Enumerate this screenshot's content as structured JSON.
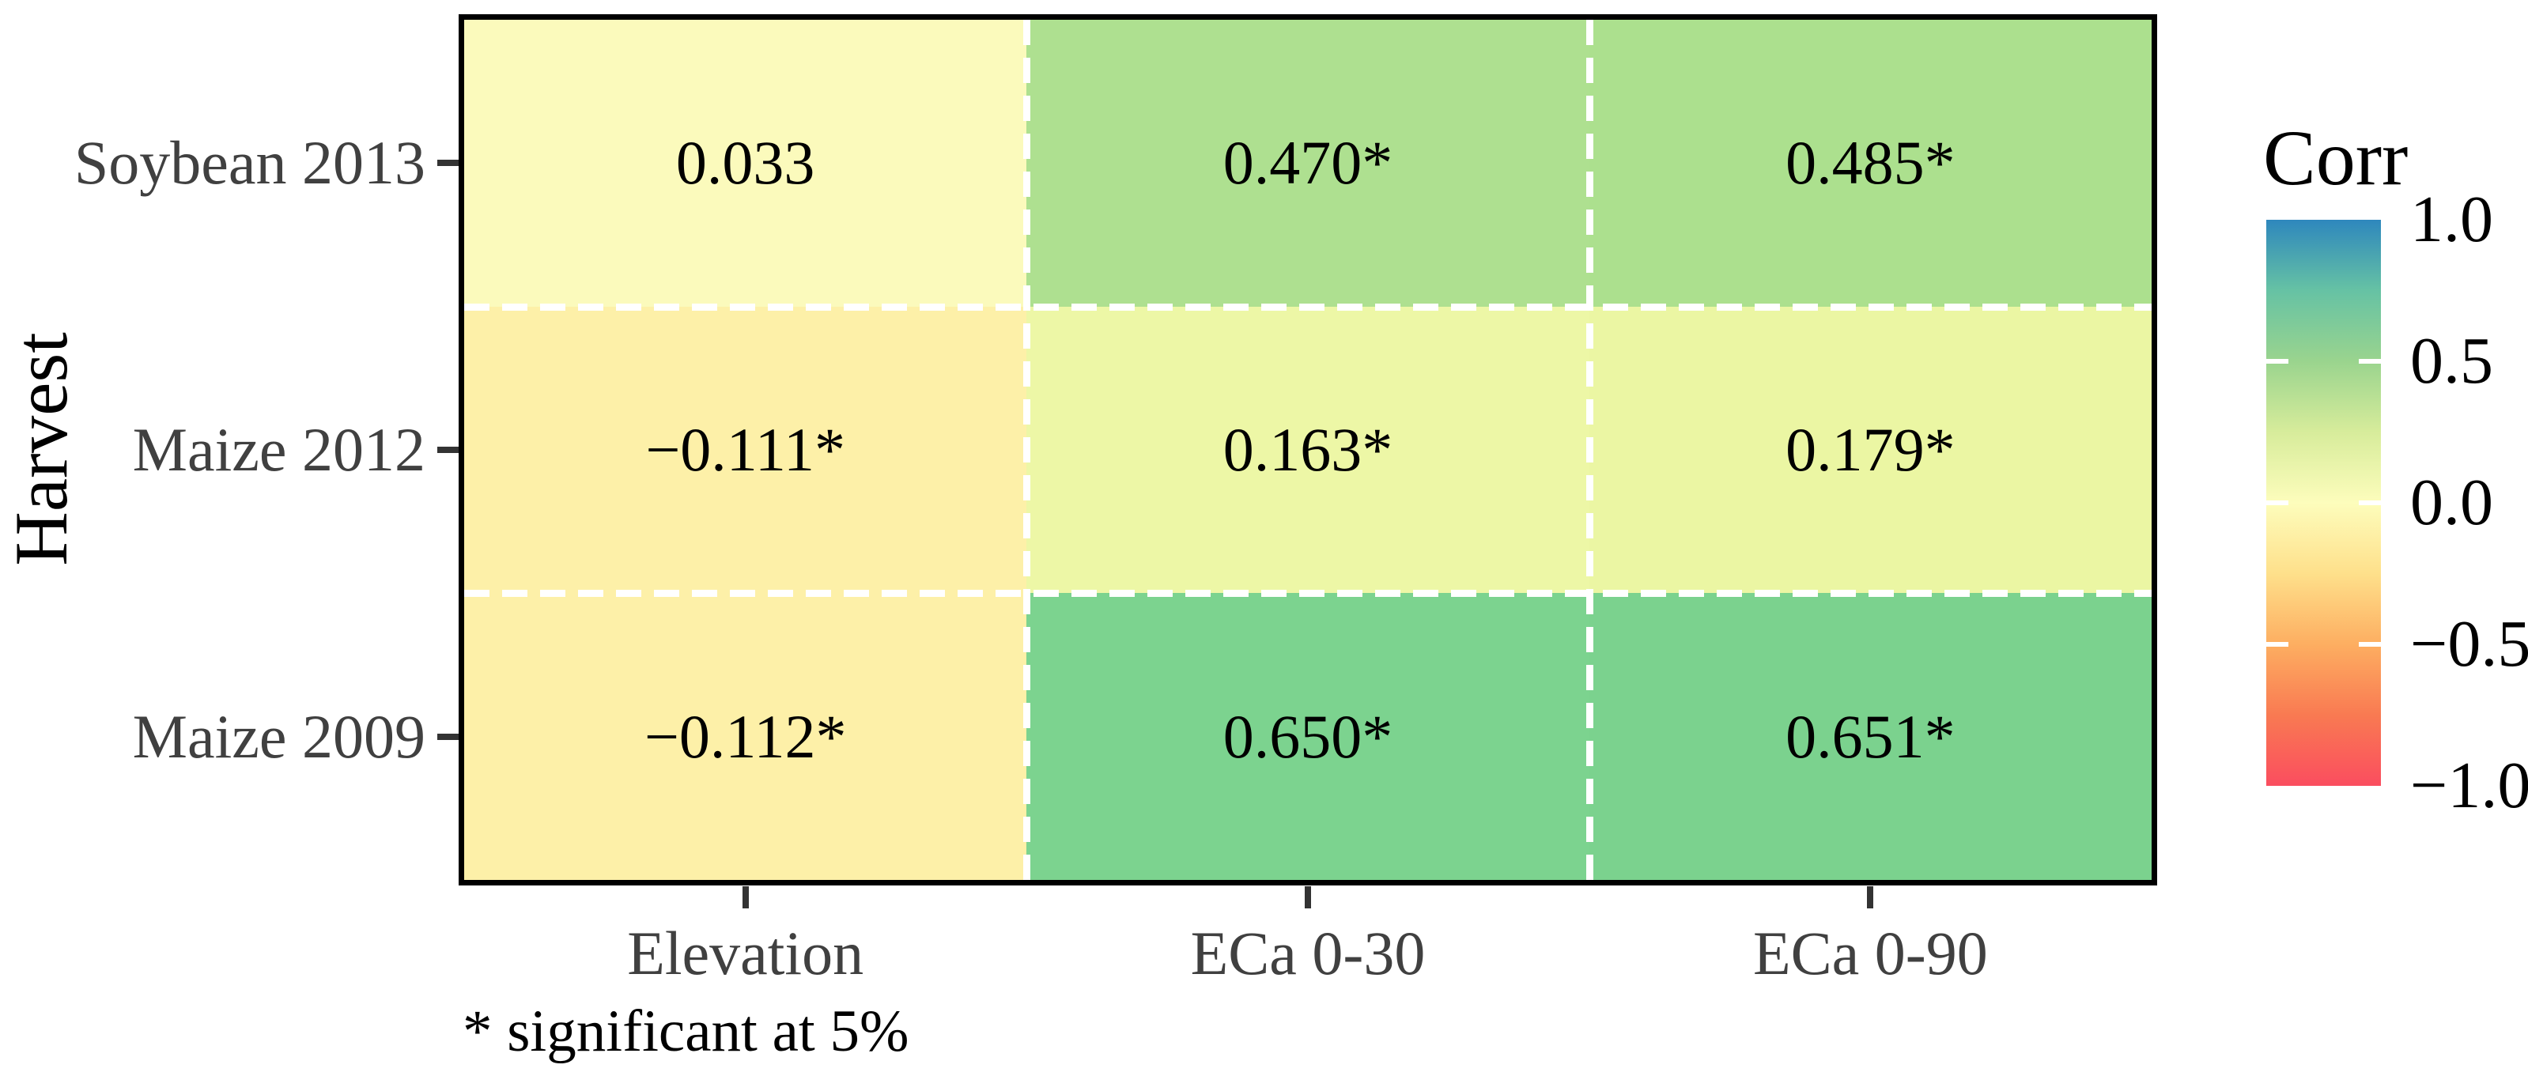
{
  "figure": {
    "background": "#ffffff"
  },
  "chart_data": {
    "type": "heatmap",
    "title": "",
    "xlabel": "",
    "ylabel": "Harvest",
    "x_categories": [
      "Elevation",
      "ECa 0-30",
      "ECa 0-90"
    ],
    "y_categories": [
      "Soybean 2013",
      "Maize 2012",
      "Maize 2009"
    ],
    "values": [
      [
        0.033,
        0.47,
        0.485
      ],
      [
        -0.111,
        0.163,
        0.179
      ],
      [
        -0.112,
        0.65,
        0.651
      ]
    ],
    "significant_at_5pct": [
      [
        false,
        true,
        true
      ],
      [
        true,
        true,
        true
      ],
      [
        true,
        true,
        true
      ]
    ],
    "cell_labels": [
      [
        "0.033",
        "0.470*",
        "0.485*"
      ],
      [
        "−0.111*",
        "0.163*",
        "0.179*"
      ],
      [
        "−0.112*",
        "0.650*",
        "0.651*"
      ]
    ],
    "cell_colors": [
      [
        "#fbfabc",
        "#aee090",
        "#ace08e"
      ],
      [
        "#fdf0a8",
        "#edf7a6",
        "#ebf6a3"
      ],
      [
        "#fdf0a8",
        "#7cd38f",
        "#7bd28e"
      ]
    ],
    "value_range": [
      -1,
      1
    ],
    "grid": "white dashed cell dividers",
    "legend": {
      "title": "Corr",
      "position": "right",
      "tick_labels": [
        "1.0",
        "0.5",
        "0.0",
        "−0.5",
        "−1.0"
      ],
      "tick_values": [
        1.0,
        0.5,
        0.0,
        -0.5,
        -1.0
      ],
      "bar_tick_values": [
        0.5,
        0.0,
        -0.5
      ],
      "gradient_stops": [
        {
          "value": 1.0,
          "color": "#2e87bd"
        },
        {
          "value": 0.75,
          "color": "#66c2a4"
        },
        {
          "value": 0.5,
          "color": "#9ad48e"
        },
        {
          "value": 0.25,
          "color": "#d7ec9b"
        },
        {
          "value": 0.0,
          "color": "#fdfdbc"
        },
        {
          "value": -0.25,
          "color": "#fee08b"
        },
        {
          "value": -0.5,
          "color": "#fdae61"
        },
        {
          "value": -0.75,
          "color": "#f97a52"
        },
        {
          "value": -1.0,
          "color": "#fa4d5f"
        }
      ]
    },
    "footnote": "* significant at 5%"
  },
  "style": {
    "axis_text_color": "#404040",
    "text_color": "#000000",
    "panel_border_color": "#000000",
    "tick_color": "#333333",
    "divider_color": "#ffffff"
  }
}
